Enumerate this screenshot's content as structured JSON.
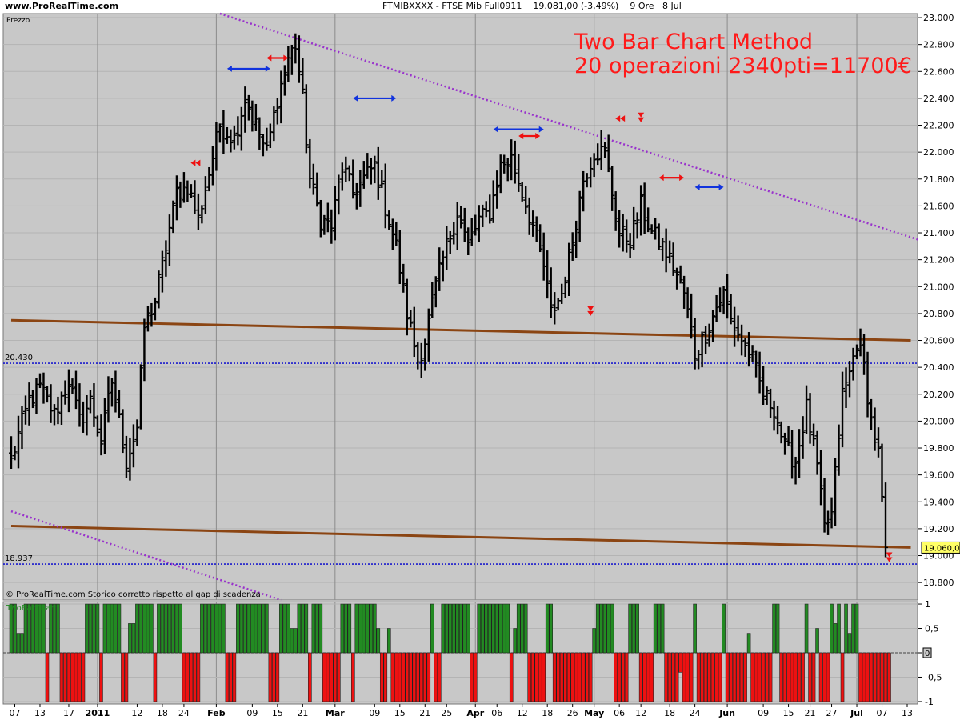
{
  "header": {
    "site": "www.ProRealTime.com",
    "instrument": "FTMIBXXXX - FTSE Mib Full0911",
    "quote": "19.081,00 (-3,49%)",
    "timeframe": "9 Ore",
    "date": "8 Jul"
  },
  "panel_labels": {
    "price": "Prezzo",
    "indicator": "TwoBarChart",
    "copyright": "© ProRealTime.com",
    "note": "Storico corretto rispetto al gap di scadenza"
  },
  "annotation": {
    "line1": "Two Bar Chart Method",
    "line2": "20 operazioni 2340pti=11700€"
  },
  "colors": {
    "background": "#c8c8c8",
    "bars": "#000000",
    "support": "#8b4513",
    "trend": "#9933cc",
    "level": "#1a1acc",
    "bull": "#228b22",
    "bear": "#ee1111",
    "blue_arrow": "#1133dd",
    "red_arrow": "#ee1111"
  },
  "chart_data": [
    {
      "type": "ohlc",
      "y_ticks": [
        "23.000",
        "22.800",
        "22.600",
        "22.400",
        "22.200",
        "22.000",
        "21.800",
        "21.600",
        "21.400",
        "21.200",
        "21.000",
        "20.800",
        "20.600",
        "20.400",
        "20.200",
        "20.000",
        "19.800",
        "19.600",
        "19.400",
        "19.200",
        "19.000",
        "18.800"
      ],
      "y_tick_values": [
        23000,
        22800,
        22600,
        22400,
        22200,
        22000,
        21800,
        21600,
        21400,
        21200,
        21000,
        20800,
        20600,
        20400,
        20200,
        20000,
        19800,
        19600,
        19400,
        19200,
        19000,
        18800
      ],
      "ylim": [
        18670,
        23030
      ],
      "x_tick_labels": [
        {
          "label": "07",
          "bar": 1,
          "bold": false
        },
        {
          "label": "13",
          "bar": 8,
          "bold": false
        },
        {
          "label": "17",
          "bar": 16,
          "bold": false
        },
        {
          "label": "2011",
          "bar": 24,
          "bold": true,
          "grid": true
        },
        {
          "label": "12",
          "bar": 35,
          "bold": false
        },
        {
          "label": "18",
          "bar": 42,
          "bold": false
        },
        {
          "label": "24",
          "bar": 48,
          "bold": false
        },
        {
          "label": "Feb",
          "bar": 57,
          "bold": true,
          "grid": true
        },
        {
          "label": "09",
          "bar": 67,
          "bold": false
        },
        {
          "label": "15",
          "bar": 74,
          "bold": false
        },
        {
          "label": "21",
          "bar": 81,
          "bold": false
        },
        {
          "label": "Mar",
          "bar": 90,
          "bold": true,
          "grid": true
        },
        {
          "label": "09",
          "bar": 101,
          "bold": false
        },
        {
          "label": "15",
          "bar": 108,
          "bold": false
        },
        {
          "label": "21",
          "bar": 115,
          "bold": false
        },
        {
          "label": "25",
          "bar": 121,
          "bold": false
        },
        {
          "label": "Apr",
          "bar": 129,
          "bold": true,
          "grid": true
        },
        {
          "label": "06",
          "bar": 135,
          "bold": false
        },
        {
          "label": "12",
          "bar": 142,
          "bold": false
        },
        {
          "label": "18",
          "bar": 149,
          "bold": false
        },
        {
          "label": "26",
          "bar": 156,
          "bold": false
        },
        {
          "label": "May",
          "bar": 162,
          "bold": true,
          "grid": true
        },
        {
          "label": "06",
          "bar": 169,
          "bold": false
        },
        {
          "label": "12",
          "bar": 175,
          "bold": false
        },
        {
          "label": "18",
          "bar": 183,
          "bold": false
        },
        {
          "label": "24",
          "bar": 190,
          "bold": false
        },
        {
          "label": "Jun",
          "bar": 199,
          "bold": true,
          "grid": true
        },
        {
          "label": "09",
          "bar": 209,
          "bold": false
        },
        {
          "label": "15",
          "bar": 216,
          "bold": false
        },
        {
          "label": "21",
          "bar": 222,
          "bold": false
        },
        {
          "label": "27",
          "bar": 228,
          "bold": false
        },
        {
          "label": "Jul",
          "bar": 235,
          "bold": true,
          "grid": true
        },
        {
          "label": "07",
          "bar": 242,
          "bold": false
        },
        {
          "label": "13",
          "bar": 249,
          "bold": false
        }
      ],
      "level_lines": [
        {
          "label": "20.430",
          "value": 20430
        },
        {
          "label": "18.937",
          "value": 18937
        }
      ],
      "last_price": {
        "label": "19.060,0",
        "value": 19060
      },
      "support_lines": [
        {
          "bar_start": 0,
          "value_start": 20750,
          "bar_end": 250,
          "value_end": 20600
        },
        {
          "bar_start": 0,
          "value_start": 19220,
          "bar_end": 250,
          "value_end": 19060
        }
      ],
      "trend_lines": [
        {
          "bar_start": 58,
          "value_start": 23030,
          "bar_end": 252,
          "value_end": 21350
        },
        {
          "bar_start": 0,
          "value_start": 19330,
          "bar_end": 75,
          "value_end": 18670
        }
      ],
      "anchors": [
        {
          "bar": 0,
          "value": 19700
        },
        {
          "bar": 2,
          "value": 19900
        },
        {
          "bar": 5,
          "value": 20150
        },
        {
          "bar": 8,
          "value": 20250
        },
        {
          "bar": 12,
          "value": 20050
        },
        {
          "bar": 16,
          "value": 20300
        },
        {
          "bar": 19,
          "value": 20000
        },
        {
          "bar": 22,
          "value": 20150
        },
        {
          "bar": 25,
          "value": 19850
        },
        {
          "bar": 28,
          "value": 20300
        },
        {
          "bar": 32,
          "value": 19700
        },
        {
          "bar": 35,
          "value": 19950
        },
        {
          "bar": 37,
          "value": 20700
        },
        {
          "bar": 40,
          "value": 20900
        },
        {
          "bar": 43,
          "value": 21300
        },
        {
          "bar": 46,
          "value": 21700
        },
        {
          "bar": 49,
          "value": 21750
        },
        {
          "bar": 52,
          "value": 21500
        },
        {
          "bar": 55,
          "value": 21850
        },
        {
          "bar": 58,
          "value": 22200
        },
        {
          "bar": 62,
          "value": 22100
        },
        {
          "bar": 65,
          "value": 22400
        },
        {
          "bar": 68,
          "value": 22200
        },
        {
          "bar": 71,
          "value": 22000
        },
        {
          "bar": 74,
          "value": 22400
        },
        {
          "bar": 77,
          "value": 22700
        },
        {
          "bar": 79,
          "value": 22800
        },
        {
          "bar": 81,
          "value": 22400
        },
        {
          "bar": 83,
          "value": 21800
        },
        {
          "bar": 86,
          "value": 21500
        },
        {
          "bar": 89,
          "value": 21450
        },
        {
          "bar": 92,
          "value": 21900
        },
        {
          "bar": 95,
          "value": 21700
        },
        {
          "bar": 98,
          "value": 21800
        },
        {
          "bar": 101,
          "value": 21900
        },
        {
          "bar": 104,
          "value": 21600
        },
        {
          "bar": 107,
          "value": 21300
        },
        {
          "bar": 110,
          "value": 20800
        },
        {
          "bar": 113,
          "value": 20450
        },
        {
          "bar": 115,
          "value": 20600
        },
        {
          "bar": 118,
          "value": 21000
        },
        {
          "bar": 121,
          "value": 21300
        },
        {
          "bar": 124,
          "value": 21550
        },
        {
          "bar": 127,
          "value": 21300
        },
        {
          "bar": 130,
          "value": 21500
        },
        {
          "bar": 133,
          "value": 21550
        },
        {
          "bar": 136,
          "value": 21900
        },
        {
          "bar": 139,
          "value": 21950
        },
        {
          "bar": 142,
          "value": 21700
        },
        {
          "bar": 145,
          "value": 21450
        },
        {
          "bar": 148,
          "value": 21150
        },
        {
          "bar": 150,
          "value": 20800
        },
        {
          "bar": 153,
          "value": 20950
        },
        {
          "bar": 156,
          "value": 21350
        },
        {
          "bar": 159,
          "value": 21800
        },
        {
          "bar": 162,
          "value": 22000
        },
        {
          "bar": 165,
          "value": 22000
        },
        {
          "bar": 167,
          "value": 21700
        },
        {
          "bar": 169,
          "value": 21400
        },
        {
          "bar": 172,
          "value": 21350
        },
        {
          "bar": 175,
          "value": 21600
        },
        {
          "bar": 178,
          "value": 21400
        },
        {
          "bar": 181,
          "value": 21300
        },
        {
          "bar": 184,
          "value": 21150
        },
        {
          "bar": 187,
          "value": 20950
        },
        {
          "bar": 190,
          "value": 20500
        },
        {
          "bar": 193,
          "value": 20650
        },
        {
          "bar": 196,
          "value": 20850
        },
        {
          "bar": 198,
          "value": 20950
        },
        {
          "bar": 200,
          "value": 20750
        },
        {
          "bar": 203,
          "value": 20600
        },
        {
          "bar": 206,
          "value": 20450
        },
        {
          "bar": 209,
          "value": 20200
        },
        {
          "bar": 212,
          "value": 20100
        },
        {
          "bar": 215,
          "value": 19800
        },
        {
          "bar": 218,
          "value": 19700
        },
        {
          "bar": 221,
          "value": 20100
        },
        {
          "bar": 224,
          "value": 19650
        },
        {
          "bar": 226,
          "value": 19200
        },
        {
          "bar": 228,
          "value": 19300
        },
        {
          "bar": 231,
          "value": 20200
        },
        {
          "bar": 233,
          "value": 20350
        },
        {
          "bar": 235,
          "value": 20600
        },
        {
          "bar": 237,
          "value": 20400
        },
        {
          "bar": 239,
          "value": 20000
        },
        {
          "bar": 241,
          "value": 19750
        },
        {
          "bar": 243,
          "value": 19060
        }
      ],
      "markers": [
        {
          "shape": "double-arrow",
          "color": "blue",
          "bar_start": 60,
          "bar_end": 72,
          "value": 22620
        },
        {
          "shape": "double-arrow",
          "color": "red",
          "bar_start": 71,
          "bar_end": 77,
          "value": 22700
        },
        {
          "shape": "double-arrow",
          "color": "blue",
          "bar_start": 95,
          "bar_end": 107,
          "value": 22400
        },
        {
          "shape": "double-arrow",
          "color": "blue",
          "bar_start": 134,
          "bar_end": 148,
          "value": 22170
        },
        {
          "shape": "double-arrow",
          "color": "red",
          "bar_start": 141,
          "bar_end": 147,
          "value": 22120
        },
        {
          "shape": "double-arrow",
          "color": "red",
          "bar_start": 180,
          "bar_end": 187,
          "value": 21810
        },
        {
          "shape": "double-arrow",
          "color": "blue",
          "bar_start": 190,
          "bar_end": 198,
          "value": 21740
        },
        {
          "shape": "left-arrows",
          "color": "red",
          "bar": 51,
          "value": 21920
        },
        {
          "shape": "left-arrows",
          "color": "red",
          "bar": 169,
          "value": 22250
        },
        {
          "shape": "down-arrows",
          "color": "red",
          "bar": 175,
          "value": 22270
        },
        {
          "shape": "down-arrows",
          "color": "red",
          "bar": 161,
          "value": 20830
        },
        {
          "shape": "down-arrows",
          "color": "red",
          "bar": 244,
          "value": 19000
        }
      ]
    },
    {
      "type": "bar",
      "name": "TwoBarChart",
      "y_ticks": [
        "1",
        "0,5",
        "0",
        "-0,5",
        "-1"
      ],
      "y_tick_values": [
        1,
        0.5,
        0,
        -0.5,
        -1
      ],
      "ylim": [
        -1.05,
        1.05
      ],
      "last_value_label": "0",
      "runs": [
        [
          0,
          1
        ],
        [
          2,
          0
        ],
        [
          4,
          1
        ],
        [
          10,
          -1
        ],
        [
          11,
          1
        ],
        [
          14,
          -1
        ],
        [
          21,
          1
        ],
        [
          25,
          -1
        ],
        [
          26,
          1
        ],
        [
          31,
          -1
        ],
        [
          35,
          1
        ],
        [
          40,
          -1
        ],
        [
          41,
          1
        ],
        [
          48,
          -1
        ],
        [
          53,
          1
        ],
        [
          60,
          -1
        ],
        [
          63,
          1
        ],
        [
          72,
          -1
        ],
        [
          75,
          1
        ],
        [
          83,
          -1
        ],
        [
          84,
          1
        ],
        [
          87,
          -1
        ],
        [
          89,
          -1
        ],
        [
          90,
          -1
        ],
        [
          92,
          1
        ],
        [
          95,
          -1
        ],
        [
          96,
          1
        ],
        [
          103,
          -1
        ],
        [
          110,
          -1
        ],
        [
          117,
          1
        ],
        [
          118,
          -1
        ],
        [
          120,
          1
        ],
        [
          128,
          -1
        ],
        [
          130,
          1
        ],
        [
          139,
          -1
        ],
        [
          141,
          1
        ],
        [
          144,
          -1
        ],
        [
          149,
          1
        ],
        [
          151,
          -1
        ],
        [
          163,
          1
        ],
        [
          168,
          -1
        ],
        [
          172,
          1
        ],
        [
          175,
          -1
        ],
        [
          179,
          1
        ],
        [
          182,
          -1
        ],
        [
          190,
          1
        ],
        [
          191,
          -1
        ],
        [
          198,
          1
        ],
        [
          199,
          -1
        ],
        [
          212,
          1
        ],
        [
          214,
          -1
        ],
        [
          221,
          1
        ],
        [
          222,
          -1
        ],
        [
          228,
          1
        ],
        [
          231,
          -1
        ],
        [
          232,
          1
        ],
        [
          236,
          -1
        ],
        [
          240,
          -1
        ],
        [
          245,
          0
        ]
      ],
      "overrides": [
        {
          "bar": 2,
          "value": 0.4
        },
        {
          "bar": 3,
          "value": 0.4
        },
        {
          "bar": 33,
          "value": 0.6
        },
        {
          "bar": 34,
          "value": 0.6
        },
        {
          "bar": 78,
          "value": 0.5
        },
        {
          "bar": 79,
          "value": 0.5
        },
        {
          "bar": 102,
          "value": 0.5
        },
        {
          "bar": 105,
          "value": 0.5
        },
        {
          "bar": 140,
          "value": 0.5
        },
        {
          "bar": 162,
          "value": 0.5
        },
        {
          "bar": 186,
          "value": -0.4
        },
        {
          "bar": 205,
          "value": 0.4
        },
        {
          "bar": 224,
          "value": 0.5
        },
        {
          "bar": 229,
          "value": 0.6
        },
        {
          "bar": 233,
          "value": 0.4
        }
      ]
    }
  ]
}
